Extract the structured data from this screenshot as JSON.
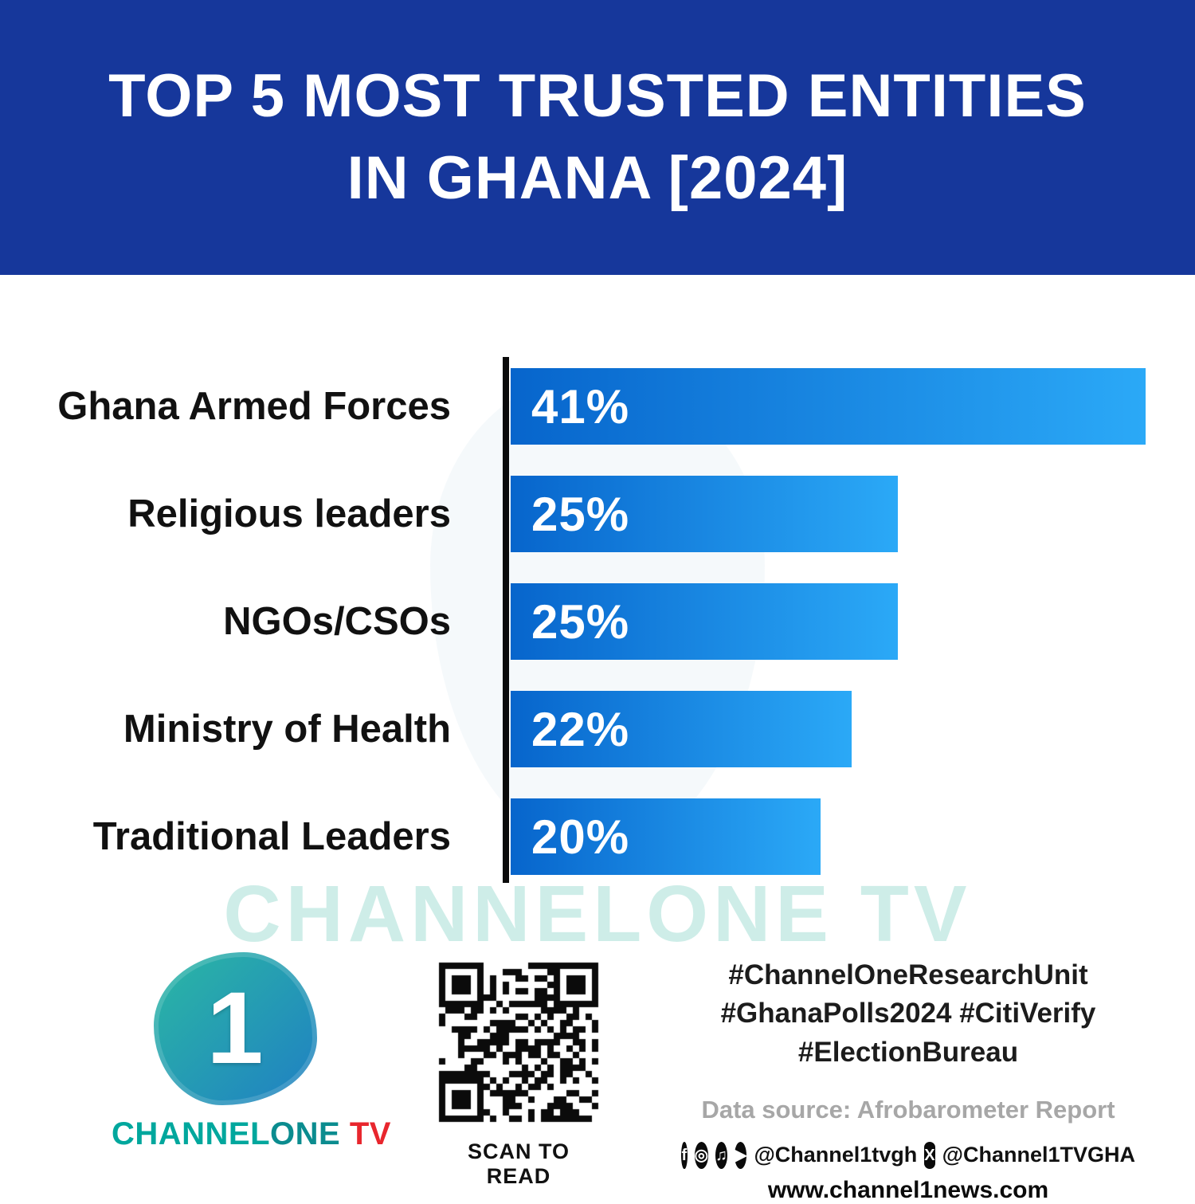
{
  "header": {
    "title_line1": "TOP 5 MOST TRUSTED ENTITIES",
    "title_line2": "IN GHANA [2024]"
  },
  "chart_data": {
    "type": "bar",
    "orientation": "horizontal",
    "title": "Top 5 most trusted entities in Ghana [2024]",
    "categories": [
      "Ghana Armed Forces",
      "Religious leaders",
      "NGOs/CSOs",
      "Ministry of Health",
      "Traditional Leaders"
    ],
    "values": [
      41,
      25,
      25,
      22,
      20
    ],
    "value_labels": [
      "41%",
      "25%",
      "25%",
      "22%",
      "20%"
    ],
    "xlim": [
      0,
      41
    ],
    "legend": "none",
    "grid": "off",
    "bar_color_start": "#0765CC",
    "bar_color_end": "#2BA9F7"
  },
  "watermark_text": "CHANNELONE TV",
  "footer": {
    "logo": {
      "numeral": "1",
      "brand_channel": "CHANNEL",
      "brand_one": "ONE",
      "brand_tv": " TV"
    },
    "qr_caption": "SCAN TO READ",
    "hashtags_line1": "#ChannelOneResearchUnit",
    "hashtags_line2": "#GhanaPolls2024 #CitiVerify",
    "hashtags_line3": "#ElectionBureau",
    "data_source": "Data source: Afrobarometer Report",
    "social": {
      "facebook_icon": "f",
      "instagram_icon": "◎",
      "tiktok_icon": "♫",
      "youtube_icon": "▶",
      "handle_1": "@Channel1tvgh",
      "x_icon": "X",
      "handle_2": "@Channel1TVGHA"
    },
    "website": "www.channel1news.com"
  },
  "colors": {
    "banner_blue": "#16379B",
    "bar_gradient_start": "#0765CC",
    "bar_gradient_end": "#2BA9F7",
    "brand_teal": "#00A79D",
    "brand_red": "#E8262D",
    "watermark_teal": "rgba(146,216,205,0.45)"
  }
}
